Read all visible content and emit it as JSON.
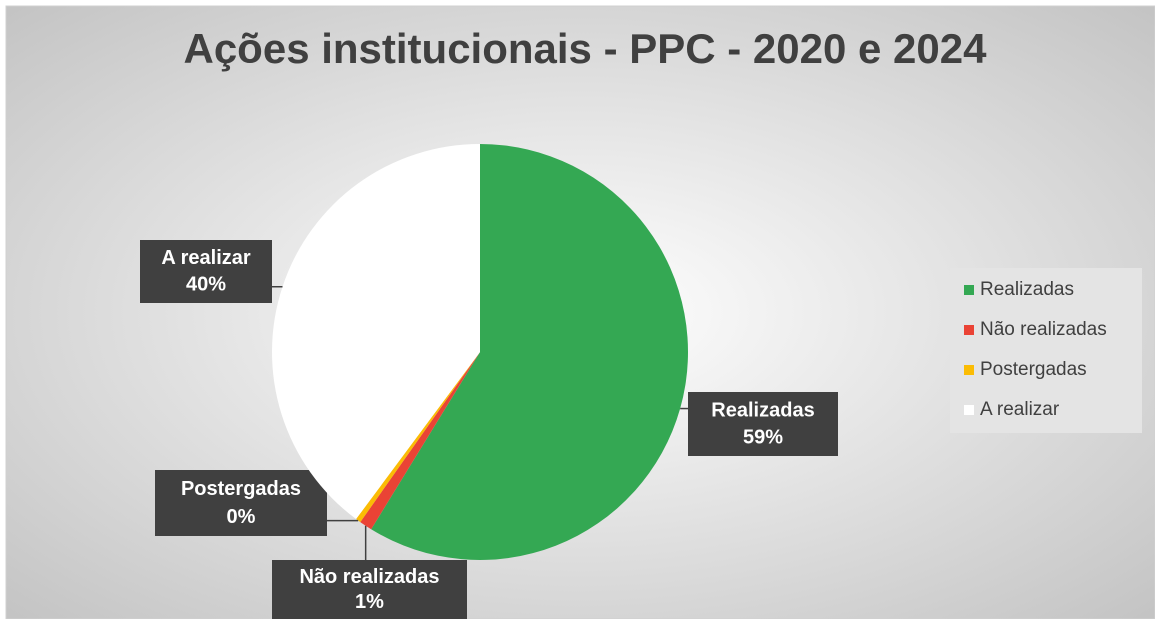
{
  "chart_data": {
    "type": "pie",
    "title": "Ações institucionais - PPC - 2020 e 2024",
    "categories": [
      "Realizadas",
      "Não realizadas",
      "Postergadas",
      "A realizar"
    ],
    "values": [
      59,
      1,
      0.4,
      40
    ],
    "value_labels": [
      "59%",
      "1%",
      "0%",
      "40%"
    ],
    "colors": [
      "#34a853",
      "#ea4335",
      "#fbbc04",
      "#ffffff"
    ],
    "legend": "right"
  }
}
